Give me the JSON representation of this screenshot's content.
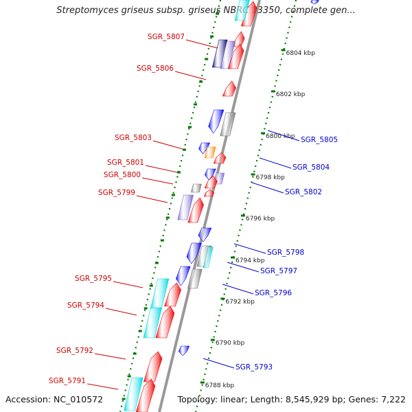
{
  "title": "Streptomyces griseus subsp. griseus NBRC 13350, complete gen...",
  "accession": "Accession: NC_010572",
  "topology": "Topology: linear; Length: 8,545,929 bp; Genes: 7,222",
  "colors": {
    "left_label": "#cc0000",
    "right_label": "#0000cc",
    "forward": "#ee0000",
    "reverse": "#0000ee",
    "cyan": "#00d8e0",
    "purple": "#7766cc",
    "gray": "#777777",
    "orange": "#ff8800",
    "navy": "#000070",
    "ruler": "#007700",
    "axis": "#999999"
  },
  "ruler_ticks": [
    "6804 kbp",
    "6802 kbp",
    "6800 kbp",
    "6798 kbp",
    "6796 kbp",
    "6794 kbp",
    "6792 kbp",
    "6790 kbp",
    "6788 kbp"
  ],
  "left_genes": [
    "SGR_5807",
    "SGR_5806",
    "SGR_5803",
    "SGR_5801",
    "SGR_5800",
    "SGR_5799",
    "SGR_5795",
    "SGR_5794",
    "SGR_5792",
    "SGR_5791"
  ],
  "right_genes": [
    "SGR_5805",
    "SGR_5804",
    "SGR_5802",
    "SGR_5798",
    "SGR_5797",
    "SGR_5796",
    "SGR_5793"
  ]
}
